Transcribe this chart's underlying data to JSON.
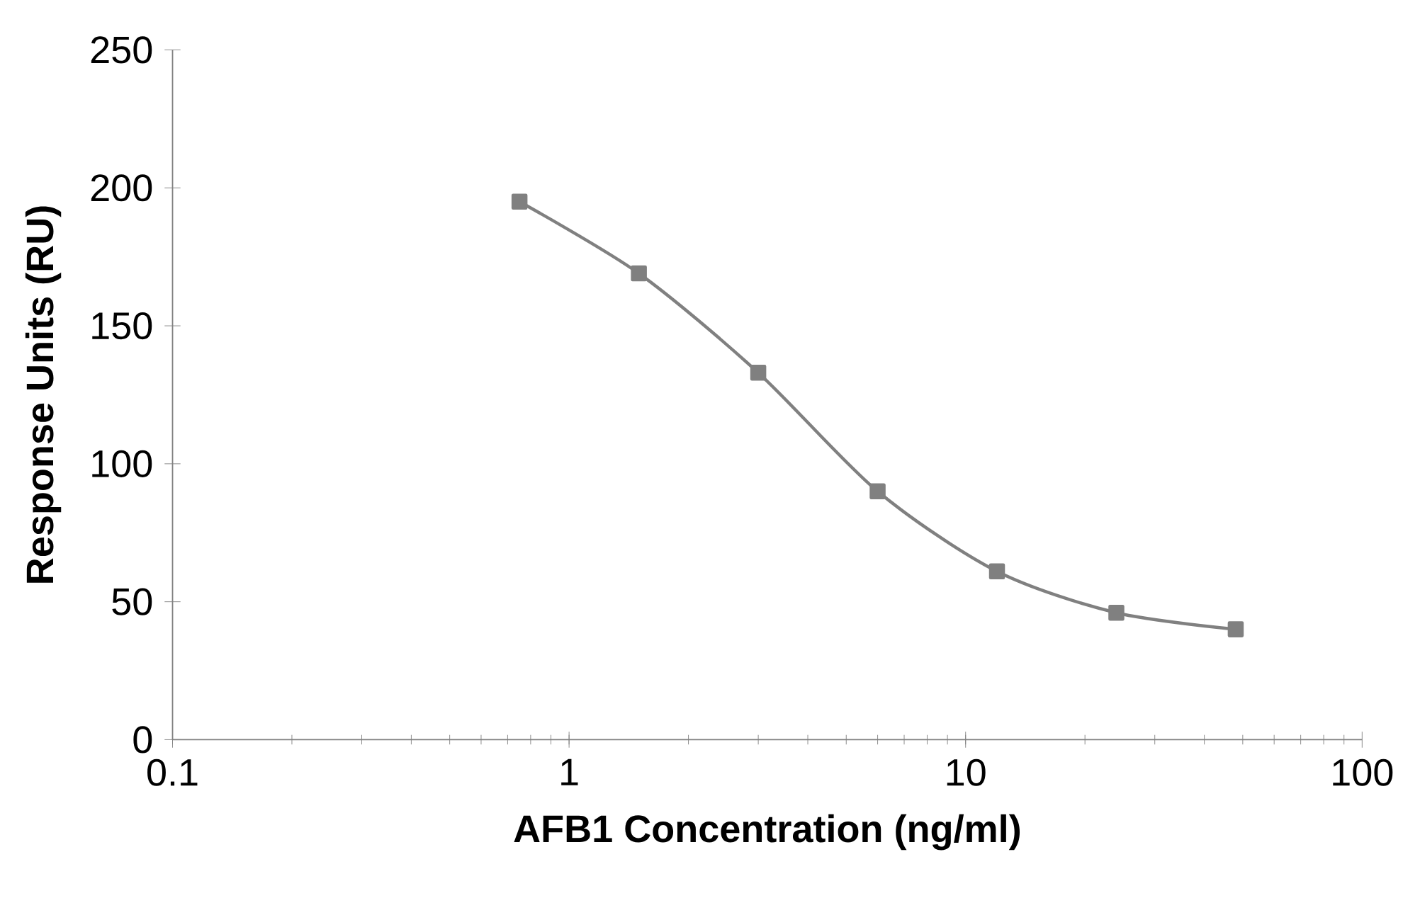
{
  "chart_data": {
    "type": "line",
    "xlabel": "AFB1 Concentration (ng/ml)",
    "ylabel": "Response Units (RU)",
    "log": "x",
    "xlim": [
      0.1,
      100
    ],
    "xticks": [
      0.1,
      1,
      10,
      100
    ],
    "ylim": [
      0,
      250
    ],
    "yticks": [
      0,
      50,
      100,
      150,
      200,
      250
    ],
    "grid": false,
    "marker": "square",
    "line_style": "solid",
    "series": [
      {
        "color": "#808080",
        "x": [
          0.75,
          1.5,
          3,
          6,
          12,
          24,
          48
        ],
        "values": [
          195,
          169,
          133,
          90,
          61,
          46,
          40
        ]
      }
    ]
  }
}
